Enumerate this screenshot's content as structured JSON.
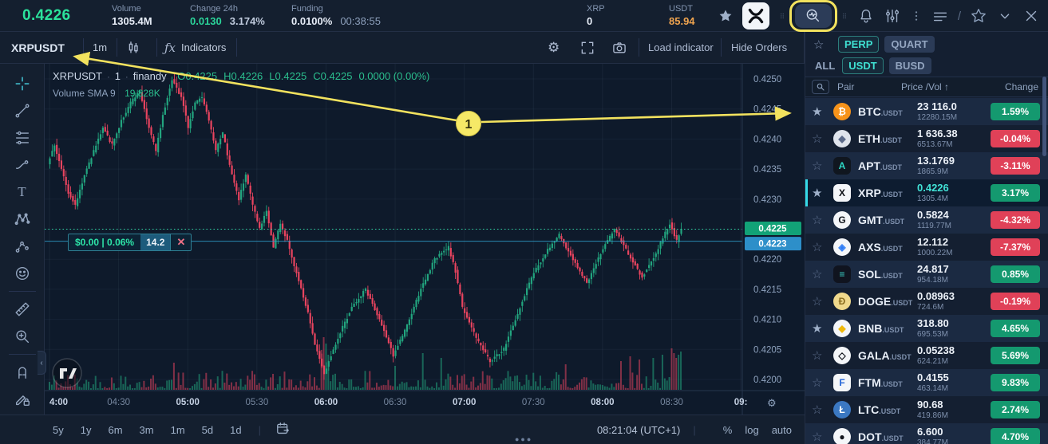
{
  "annotation": {
    "step": "1"
  },
  "colors": {
    "candle_up": "#22a57f",
    "candle_down": "#e8445f",
    "badge_green": "#14996f",
    "badge_red": "#e04158",
    "accent_teal": "#3fe0d2",
    "annotation_yellow": "#f2e25e",
    "price_green": "#2be39c",
    "usdt_orange": "#f0a44f",
    "order_line_blue": "#2f9cc9",
    "last_price_line": "#2fd6a3"
  },
  "top_bar": {
    "last_price": "0.4226",
    "volume_label": "Volume",
    "volume_value": "1305.4M",
    "change_label": "Change 24h",
    "change_value": "0.0130",
    "change_pct": "3.174%",
    "funding_label": "Funding",
    "funding_value": "0.0100%",
    "funding_countdown": "00:38:55",
    "base_label": "XRP",
    "base_value": "0",
    "quote_label": "USDT",
    "quote_value": "85.94",
    "icons": [
      "star",
      "xrp-logo",
      "drag-dots",
      "market-scanner",
      "drag-dots",
      "bell",
      "sliders",
      "menu-dots",
      "layout-list",
      "slash",
      "star-outline",
      "chevron-down",
      "close"
    ]
  },
  "chart_toolbar": {
    "symbol": "XRPUSDT",
    "interval": "1m",
    "indicators_label": "Indicators",
    "load_indicator_label": "Load indicator",
    "hide_orders_label": "Hide Orders"
  },
  "left_toolbar": {
    "tools": [
      "crosshair",
      "trend-line",
      "fib-lines",
      "brush",
      "text",
      "xabcd-pattern",
      "forecast",
      "emoji",
      "separator",
      "ruler",
      "zoom-in",
      "separator",
      "magnet",
      "draw-lock"
    ]
  },
  "legend": {
    "symbol": "XRPUSDT",
    "interval": "1",
    "source": "finandy",
    "o": "O0.4225",
    "h": "H0.4226",
    "l": "L0.4225",
    "c": "C0.4225",
    "chg": "0.0000 (0.00%)",
    "vol_label": "Volume SMA 9",
    "vol_value": "19.828K"
  },
  "order_tag": {
    "label": "$0.00 | 0.06%",
    "qty": "14.2"
  },
  "bottom_bar": {
    "ranges": [
      "5y",
      "1y",
      "6m",
      "3m",
      "1m",
      "5d",
      "1d"
    ],
    "clock": "08:21:04 (UTC+1)",
    "pct": "%",
    "log": "log",
    "auto": "auto"
  },
  "chart_data": {
    "type": "candlestick",
    "symbol": "XRPUSDT",
    "interval": "1m",
    "source": "finandy",
    "ohlc_last": {
      "o": 0.4225,
      "h": 0.4226,
      "l": 0.4225,
      "c": 0.4225,
      "change": "0.0000 (0.00%)"
    },
    "ylim": [
      0.4197,
      0.4252
    ],
    "price_axis": [
      "0.4250",
      "0.4245",
      "0.4240",
      "0.4235",
      "0.4230",
      "0.4225",
      "0.4220",
      "0.4215",
      "0.4210",
      "0.4205",
      "0.4200"
    ],
    "time_axis": [
      {
        "label": "4:00",
        "major": true
      },
      {
        "label": "04:30",
        "major": false
      },
      {
        "label": "05:00",
        "major": true
      },
      {
        "label": "05:30",
        "major": false
      },
      {
        "label": "06:00",
        "major": true
      },
      {
        "label": "06:30",
        "major": false
      },
      {
        "label": "07:00",
        "major": true
      },
      {
        "label": "07:30",
        "major": false
      },
      {
        "label": "08:00",
        "major": true
      },
      {
        "label": "08:30",
        "major": false
      },
      {
        "label": "09:",
        "major": true
      }
    ],
    "last_price_badge": "0.4225",
    "order_price_badge": "0.4223",
    "last_price_level": 0.4225,
    "order_price_level": 0.4223,
    "minutes": 275,
    "price_path_anchors": [
      [
        0,
        0.4236
      ],
      [
        3,
        0.4239
      ],
      [
        6,
        0.4235
      ],
      [
        9,
        0.4231
      ],
      [
        12,
        0.4229
      ],
      [
        16,
        0.4234
      ],
      [
        20,
        0.4238
      ],
      [
        24,
        0.4242
      ],
      [
        28,
        0.4239
      ],
      [
        32,
        0.4243
      ],
      [
        36,
        0.4246
      ],
      [
        40,
        0.4248
      ],
      [
        44,
        0.4242
      ],
      [
        47,
        0.4238
      ],
      [
        50,
        0.4244
      ],
      [
        54,
        0.425
      ],
      [
        58,
        0.4247
      ],
      [
        61,
        0.4242
      ],
      [
        64,
        0.4246
      ],
      [
        67,
        0.4247
      ],
      [
        70,
        0.4243
      ],
      [
        73,
        0.4238
      ],
      [
        76,
        0.4241
      ],
      [
        80,
        0.4234
      ],
      [
        83,
        0.423
      ],
      [
        86,
        0.4234
      ],
      [
        89,
        0.4229
      ],
      [
        92,
        0.4225
      ],
      [
        95,
        0.4228
      ],
      [
        98,
        0.4222
      ],
      [
        101,
        0.4226
      ],
      [
        104,
        0.4223
      ],
      [
        107,
        0.4219
      ],
      [
        110,
        0.4215
      ],
      [
        113,
        0.4211
      ],
      [
        116,
        0.4206
      ],
      [
        120,
        0.4201
      ],
      [
        126,
        0.4207
      ],
      [
        132,
        0.4212
      ],
      [
        138,
        0.4215
      ],
      [
        144,
        0.421
      ],
      [
        150,
        0.4204
      ],
      [
        156,
        0.4209
      ],
      [
        162,
        0.4215
      ],
      [
        168,
        0.422
      ],
      [
        174,
        0.4222
      ],
      [
        177,
        0.4218
      ],
      [
        180,
        0.4212
      ],
      [
        186,
        0.4207
      ],
      [
        192,
        0.4203
      ],
      [
        198,
        0.4205
      ],
      [
        204,
        0.4211
      ],
      [
        210,
        0.4217
      ],
      [
        216,
        0.4221
      ],
      [
        222,
        0.4224
      ],
      [
        228,
        0.422
      ],
      [
        234,
        0.4216
      ],
      [
        240,
        0.4221
      ],
      [
        246,
        0.4225
      ],
      [
        252,
        0.4221
      ],
      [
        258,
        0.4217
      ],
      [
        264,
        0.4221
      ],
      [
        270,
        0.4226
      ],
      [
        273,
        0.4223
      ],
      [
        275,
        0.4225
      ]
    ],
    "volume_spikes": {
      "54": 34,
      "118": 50,
      "119": 66,
      "120": 58,
      "121": 44,
      "150": 30,
      "162": 46,
      "170": 40,
      "224": 32,
      "248": 36,
      "252": 42,
      "256": 38,
      "262": 40,
      "266": 44,
      "270": 52,
      "271": 46,
      "272": 40,
      "273": 44,
      "274": 48
    }
  },
  "sidebar": {
    "market_tabs": [
      "PERP",
      "QUART"
    ],
    "market_active": "PERP",
    "quote_tabs": [
      "ALL",
      "USDT",
      "BUSD"
    ],
    "quote_active": "USDT",
    "columns": [
      "Pair",
      "Price /Vol ↑",
      "Change"
    ],
    "pairs": [
      {
        "sym": "BTC",
        "quote": ".USDT",
        "price": "23 116.0",
        "vol": "12280.15M",
        "change": "1.59%",
        "dir": "up",
        "fav": true,
        "selected": false,
        "icon": {
          "name": "btc-icon",
          "bg": "#f7931a",
          "fg": "#ffffff",
          "glyph": "₿",
          "shape": "circle"
        }
      },
      {
        "sym": "ETH",
        "quote": ".USDT",
        "price": "1 636.38",
        "vol": "6513.67M",
        "change": "-0.04%",
        "dir": "down",
        "fav": false,
        "selected": false,
        "icon": {
          "name": "eth-icon",
          "bg": "#dfe4ec",
          "fg": "#5c6b8a",
          "glyph": "◆",
          "shape": "circle"
        }
      },
      {
        "sym": "APT",
        "quote": ".USDT",
        "price": "13.1769",
        "vol": "1865.9M",
        "change": "-3.11%",
        "dir": "down",
        "fav": false,
        "selected": false,
        "icon": {
          "name": "apt-icon",
          "bg": "#10161f",
          "fg": "#2dd8c4",
          "glyph": "A",
          "shape": "square"
        }
      },
      {
        "sym": "XRP",
        "quote": ".USDT",
        "price": "0.4226",
        "vol": "1305.4M",
        "change": "3.17%",
        "dir": "up",
        "fav": true,
        "selected": true,
        "icon": {
          "name": "xrp-icon",
          "bg": "#f4f6f9",
          "fg": "#0b0e14",
          "glyph": "X",
          "shape": "square"
        }
      },
      {
        "sym": "GMT",
        "quote": ".USDT",
        "price": "0.5824",
        "vol": "1119.77M",
        "change": "-4.32%",
        "dir": "down",
        "fav": false,
        "selected": false,
        "icon": {
          "name": "gmt-icon",
          "bg": "#f4f6f9",
          "fg": "#11151c",
          "glyph": "G",
          "shape": "circle"
        }
      },
      {
        "sym": "AXS",
        "quote": ".USDT",
        "price": "12.112",
        "vol": "1000.22M",
        "change": "-7.37%",
        "dir": "down",
        "fav": false,
        "selected": false,
        "icon": {
          "name": "axs-icon",
          "bg": "#f4f6f9",
          "fg": "#2f7df6",
          "glyph": "◈",
          "shape": "circle"
        }
      },
      {
        "sym": "SOL",
        "quote": ".USDT",
        "price": "24.817",
        "vol": "954.18M",
        "change": "0.85%",
        "dir": "up",
        "fav": false,
        "selected": false,
        "icon": {
          "name": "sol-icon",
          "bg": "#10141f",
          "fg": "#3ad0c4",
          "glyph": "≡",
          "shape": "square"
        }
      },
      {
        "sym": "DOGE",
        "quote": ".USDT",
        "price": "0.08963",
        "vol": "724.6M",
        "change": "-0.19%",
        "dir": "down",
        "fav": false,
        "selected": false,
        "icon": {
          "name": "doge-icon",
          "bg": "#f0d98c",
          "fg": "#8a6d1f",
          "glyph": "Ð",
          "shape": "circle"
        }
      },
      {
        "sym": "BNB",
        "quote": ".USDT",
        "price": "318.80",
        "vol": "695.53M",
        "change": "4.65%",
        "dir": "up",
        "fav": true,
        "selected": false,
        "icon": {
          "name": "bnb-icon",
          "bg": "#f4f6f9",
          "fg": "#f0b90b",
          "glyph": "◆",
          "shape": "circle"
        }
      },
      {
        "sym": "GALA",
        "quote": ".USDT",
        "price": "0.05238",
        "vol": "624.21M",
        "change": "5.69%",
        "dir": "up",
        "fav": false,
        "selected": false,
        "icon": {
          "name": "gala-icon",
          "bg": "#f4f6f9",
          "fg": "#11151c",
          "glyph": "◇",
          "shape": "circle"
        }
      },
      {
        "sym": "FTM",
        "quote": ".USDT",
        "price": "0.4155",
        "vol": "463.14M",
        "change": "9.83%",
        "dir": "up",
        "fav": false,
        "selected": false,
        "icon": {
          "name": "ftm-icon",
          "bg": "#f4f6f9",
          "fg": "#2566d8",
          "glyph": "F",
          "shape": "square"
        }
      },
      {
        "sym": "LTC",
        "quote": ".USDT",
        "price": "90.68",
        "vol": "419.86M",
        "change": "2.74%",
        "dir": "up",
        "fav": false,
        "selected": false,
        "icon": {
          "name": "ltc-icon",
          "bg": "#3b78c2",
          "fg": "#ffffff",
          "glyph": "Ł",
          "shape": "circle"
        }
      },
      {
        "sym": "DOT",
        "quote": ".USDT",
        "price": "6.600",
        "vol": "384.77M",
        "change": "4.70%",
        "dir": "up",
        "fav": false,
        "selected": false,
        "icon": {
          "name": "dot-icon",
          "bg": "#f4f6f9",
          "fg": "#14171f",
          "glyph": "●",
          "shape": "circle"
        }
      }
    ]
  }
}
